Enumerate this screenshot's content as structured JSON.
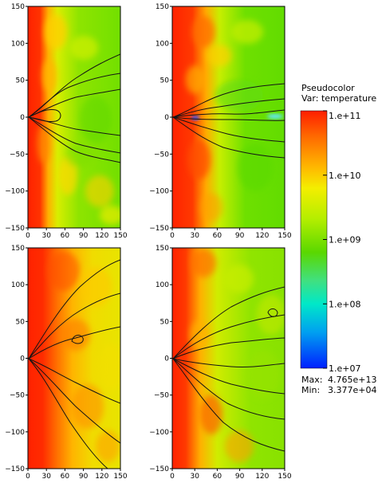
{
  "chart_data": {
    "type": "heatmap",
    "layout": "2x2 panels with shared colorbar",
    "panels": [
      {
        "name": "top-left",
        "xlim": [
          0,
          150
        ],
        "ylim": [
          -150,
          150
        ]
      },
      {
        "name": "top-right",
        "xlim": [
          0,
          150
        ],
        "ylim": [
          -150,
          150
        ]
      },
      {
        "name": "bottom-left",
        "xlim": [
          0,
          150
        ],
        "ylim": [
          -150,
          150
        ]
      },
      {
        "name": "bottom-right",
        "xlim": [
          0,
          150
        ],
        "ylim": [
          -150,
          150
        ]
      }
    ],
    "x_ticks": [
      "0",
      "30",
      "60",
      "90",
      "120",
      "150"
    ],
    "x_tick_values": [
      0,
      30,
      60,
      90,
      120,
      150
    ],
    "y_ticks": [
      "150",
      "100",
      "50",
      "0",
      "−50",
      "−100",
      "−150"
    ],
    "y_tick_values": [
      150,
      100,
      50,
      0,
      -50,
      -100,
      -150
    ],
    "legend": {
      "title": "Pseudocolor",
      "var": "Var: temperature",
      "scale": "log",
      "tick_labels": [
        "1.e+11",
        "1.e+10",
        "1.e+09",
        "1.e+08",
        "1.e+07"
      ],
      "tick_values": [
        100000000000.0,
        10000000000.0,
        1000000000.0,
        100000000.0,
        10000000.0
      ],
      "max_label": "Max:",
      "max_value": "4.765e+13",
      "min_label": "Min:",
      "min_value": "3.377e+04",
      "colors": [
        "#ff1e00",
        "#ff9a00",
        "#f0ee00",
        "#b8f000",
        "#55dd00",
        "#00e8c8",
        "#0040ff"
      ]
    }
  }
}
